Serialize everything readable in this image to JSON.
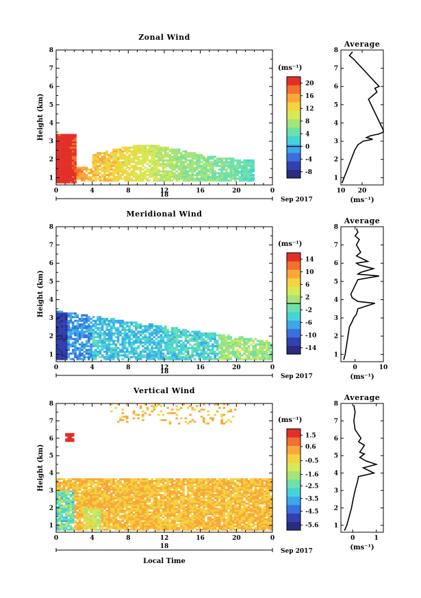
{
  "figure": {
    "xlabel": "Local Time",
    "date_label": "18",
    "month_label": "Sep 2017",
    "cbar_unit": "(ms⁻¹)",
    "avg_title": "Average",
    "avg_unit": "(ms⁻¹)",
    "ylabel": "Height (km)",
    "x_ticks": [
      "0",
      "4",
      "8",
      "12",
      "16",
      "20",
      "0"
    ],
    "y_ticks": [
      "1",
      "2",
      "3",
      "4",
      "5",
      "6",
      "7",
      "8"
    ]
  },
  "chart_data": [
    {
      "type": "heatmap",
      "title": "Zonal Wind",
      "ylabel": "Height (km)",
      "xlim": [
        0,
        24
      ],
      "ylim": [
        0.6,
        8
      ],
      "colorbar": {
        "label": "(ms⁻¹)",
        "range": [
          -10,
          22
        ],
        "ticks": [
          "20",
          "16",
          "12",
          "8",
          "4",
          "0",
          "-4",
          "-8"
        ],
        "tick_values": [
          20,
          16,
          12,
          8,
          4,
          0,
          -4,
          -8
        ],
        "zero_line": 0
      },
      "profile": {
        "title": "Average",
        "xlabel": "(ms⁻¹)",
        "xlim": [
          10,
          30
        ],
        "xticks": [
          "10",
          "20"
        ],
        "xtick_values": [
          10,
          20
        ],
        "height": [
          0.7,
          1.0,
          1.3,
          1.6,
          1.9,
          2.2,
          2.5,
          2.8,
          3.0,
          3.1,
          3.2,
          3.3,
          3.4,
          3.5,
          3.6,
          5.3,
          5.5,
          5.7,
          5.9,
          6.0,
          7.5,
          7.7,
          7.9
        ],
        "value": [
          10.5,
          11.5,
          12.5,
          13.5,
          14.5,
          15.5,
          16.5,
          18.0,
          20.5,
          25.0,
          22.0,
          24.0,
          28.0,
          31.0,
          31.0,
          23.0,
          25.0,
          27.0,
          26.0,
          28.0,
          16.0,
          14.0,
          15.5
        ]
      }
    },
    {
      "type": "heatmap",
      "title": "Meridional Wind",
      "ylabel": "Height (km)",
      "xlim": [
        0,
        24
      ],
      "ylim": [
        0.6,
        8
      ],
      "colorbar": {
        "label": "(ms⁻¹)",
        "range": [
          -16,
          16
        ],
        "ticks": [
          "14",
          "10",
          "6",
          "2",
          "-2",
          "-6",
          "-10",
          "-14"
        ],
        "tick_values": [
          14,
          10,
          6,
          2,
          -2,
          -6,
          -10,
          -14
        ],
        "zero_line": 0
      },
      "profile": {
        "title": "Average",
        "xlabel": "(ms⁻¹)",
        "xlim": [
          -5,
          10
        ],
        "xticks": [
          "0",
          "10"
        ],
        "xtick_values": [
          0,
          10
        ],
        "height": [
          0.7,
          1.0,
          1.5,
          2.0,
          2.5,
          2.8,
          3.0,
          3.2,
          3.5,
          3.8,
          3.9,
          4.1,
          4.3,
          5.1,
          5.3,
          5.4,
          5.5,
          5.7,
          5.9,
          6.0,
          6.1,
          6.4,
          6.6,
          7.0,
          7.3,
          7.5,
          7.7,
          7.9
        ],
        "value": [
          -4.0,
          -3.5,
          -3.0,
          -2.5,
          -2.0,
          -1.0,
          -0.5,
          0.5,
          1.0,
          7.0,
          1.0,
          -1.0,
          -1.5,
          1.0,
          8.5,
          1.0,
          2.0,
          6.5,
          1.5,
          0.5,
          4.5,
          0.5,
          2.0,
          0.5,
          1.5,
          0.0,
          1.0,
          0.5
        ]
      }
    },
    {
      "type": "heatmap",
      "title": "Vertical Wind",
      "ylabel": "Height (km)",
      "xlabel": "Local Time",
      "xlim": [
        0,
        24
      ],
      "ylim": [
        0.6,
        8
      ],
      "colorbar": {
        "label": "(ms⁻¹)",
        "range": [
          -6,
          2
        ],
        "ticks": [
          "1.5",
          "0.6",
          "-0.5",
          "-1.6",
          "-2.5",
          "-3.5",
          "-4.5",
          "-5.6"
        ],
        "tick_values": [
          1.5,
          0.6,
          -0.5,
          -1.6,
          -2.5,
          -3.5,
          -4.5,
          -5.6
        ],
        "zero_line": null
      },
      "profile": {
        "title": "Average",
        "xlabel": "(ms⁻¹)",
        "xlim": [
          -0.5,
          1.3
        ],
        "xticks": [
          "0",
          "1"
        ],
        "xtick_values": [
          0,
          1
        ],
        "height": [
          0.7,
          1.0,
          1.5,
          2.0,
          2.5,
          3.0,
          3.5,
          3.8,
          4.0,
          4.3,
          4.5,
          4.7,
          4.9,
          5.1,
          5.2,
          5.4,
          5.6,
          5.8,
          6.0,
          6.5,
          7.0,
          7.5,
          7.9
        ],
        "value": [
          -0.35,
          -0.25,
          -0.15,
          -0.05,
          0.02,
          0.1,
          0.2,
          0.25,
          0.9,
          0.45,
          1.0,
          0.55,
          0.3,
          0.5,
          0.3,
          0.4,
          0.5,
          0.25,
          0.35,
          0.1,
          0.05,
          0.1,
          0.05
        ]
      }
    }
  ],
  "colors": {
    "jet": [
      "#2b2b7f",
      "#3340b0",
      "#3a6fe0",
      "#3ca8ea",
      "#44d4d8",
      "#6fe0a8",
      "#a4e47a",
      "#d8e855",
      "#f4d240",
      "#f8a838",
      "#f47030",
      "#e23028"
    ]
  }
}
